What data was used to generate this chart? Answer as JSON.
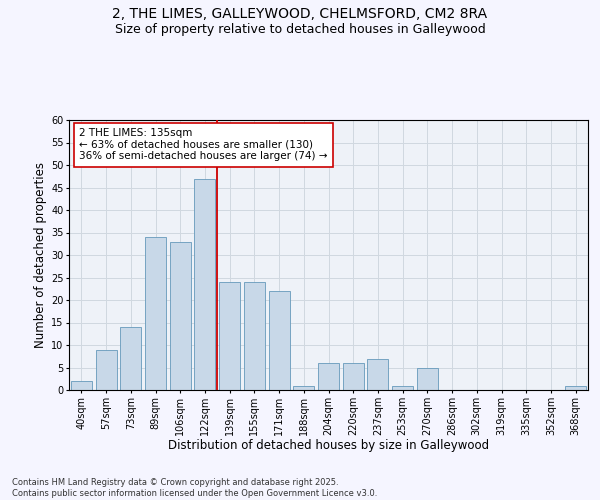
{
  "title_line1": "2, THE LIMES, GALLEYWOOD, CHELMSFORD, CM2 8RA",
  "title_line2": "Size of property relative to detached houses in Galleywood",
  "xlabel": "Distribution of detached houses by size in Galleywood",
  "ylabel": "Number of detached properties",
  "categories": [
    "40sqm",
    "57sqm",
    "73sqm",
    "89sqm",
    "106sqm",
    "122sqm",
    "139sqm",
    "155sqm",
    "171sqm",
    "188sqm",
    "204sqm",
    "220sqm",
    "237sqm",
    "253sqm",
    "270sqm",
    "286sqm",
    "302sqm",
    "319sqm",
    "335sqm",
    "352sqm",
    "368sqm"
  ],
  "values": [
    2,
    9,
    14,
    34,
    33,
    47,
    24,
    24,
    22,
    1,
    6,
    6,
    7,
    1,
    5,
    0,
    0,
    0,
    0,
    0,
    1
  ],
  "bar_color": "#c8d8e8",
  "bar_edge_color": "#6699bb",
  "vline_x": 5.5,
  "vline_color": "#cc0000",
  "annotation_text": "2 THE LIMES: 135sqm\n← 63% of detached houses are smaller (130)\n36% of semi-detached houses are larger (74) →",
  "annotation_box_color": "#ffffff",
  "annotation_box_edge": "#cc0000",
  "ylim": [
    0,
    60
  ],
  "yticks": [
    0,
    5,
    10,
    15,
    20,
    25,
    30,
    35,
    40,
    45,
    50,
    55,
    60
  ],
  "grid_color": "#d0d8e0",
  "background_color": "#eef2f8",
  "footer_text": "Contains HM Land Registry data © Crown copyright and database right 2025.\nContains public sector information licensed under the Open Government Licence v3.0.",
  "title_fontsize": 10,
  "subtitle_fontsize": 9,
  "axis_label_fontsize": 8.5,
  "tick_fontsize": 7,
  "annotation_fontsize": 7.5,
  "footer_fontsize": 6
}
